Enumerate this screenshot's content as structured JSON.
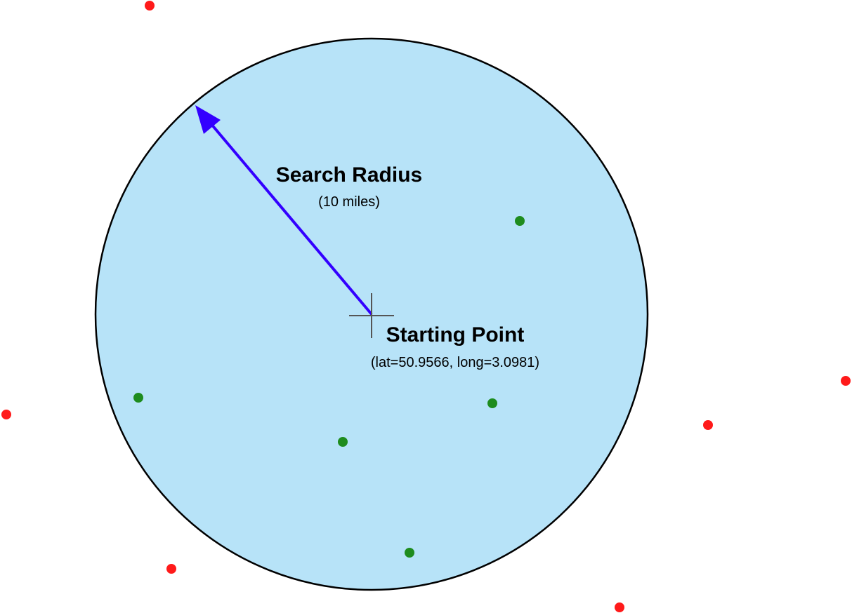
{
  "search_radius": {
    "title": "Search Radius",
    "subtitle": "(10 miles)"
  },
  "starting_point": {
    "title": "Starting Point",
    "subtitle": "(lat=50.9566, long=3.0981)"
  },
  "colors": {
    "circle_fill": "#b7e3f8",
    "circle_stroke": "#000000",
    "arrow": "#3300ff",
    "crosshair": "#555555",
    "inside_point": "#1e8c1e",
    "outside_point": "#ff1a1a"
  },
  "legend_semantics": {
    "inside_points": "green",
    "outside_points": "red"
  }
}
